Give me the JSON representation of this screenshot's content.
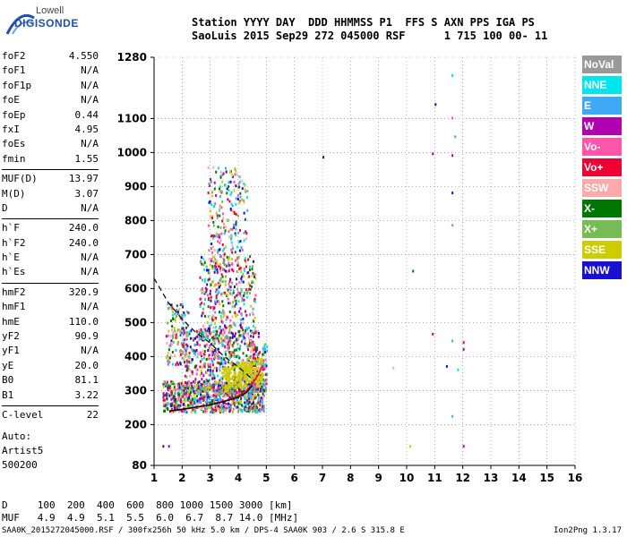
{
  "logo": {
    "line1": "Lowell",
    "line2": "DIGISONDE"
  },
  "header": {
    "line1": "Station YYYY DAY  DDD HHMMSS P1  FFS S AXN PPS IGA PS",
    "line2": "SaoLuis 2015 Sep29 272 045000 RSF      1 715 100 00- 11"
  },
  "params": {
    "group1": [
      {
        "k": "foF2",
        "v": "4.550"
      },
      {
        "k": "foF1",
        "v": "N/A"
      },
      {
        "k": "foF1p",
        "v": "N/A"
      },
      {
        "k": "foE",
        "v": "N/A"
      },
      {
        "k": "foEp",
        "v": "0.44"
      },
      {
        "k": "fxI",
        "v": "4.95"
      },
      {
        "k": "foEs",
        "v": "N/A"
      },
      {
        "k": "fmin",
        "v": "1.55"
      }
    ],
    "group2": [
      {
        "k": "MUF(D)",
        "v": "13.97"
      },
      {
        "k": "M(D)",
        "v": "3.07"
      },
      {
        "k": "D",
        "v": "N/A"
      }
    ],
    "group3": [
      {
        "k": "h`F",
        "v": "240.0"
      },
      {
        "k": "h`F2",
        "v": "240.0"
      },
      {
        "k": "h`E",
        "v": "N/A"
      },
      {
        "k": "h`Es",
        "v": "N/A"
      }
    ],
    "group4": [
      {
        "k": "hmF2",
        "v": "320.9"
      },
      {
        "k": "hmF1",
        "v": "N/A"
      },
      {
        "k": "hmE",
        "v": "110.0"
      },
      {
        "k": "yF2",
        "v": "90.9"
      },
      {
        "k": "yF1",
        "v": "N/A"
      },
      {
        "k": "yE",
        "v": "20.0"
      },
      {
        "k": "B0",
        "v": "81.1"
      },
      {
        "k": "B1",
        "v": "3.22"
      }
    ],
    "group5": [
      {
        "k": "C-level",
        "v": "22"
      }
    ]
  },
  "auto": {
    "l1": "Auto:",
    "l2": "Artist5",
    "l3": "500200"
  },
  "bottom": {
    "dline": "D     100  200  400  600  800 1000 1500 3000 [km]",
    "mufline": "MUF   4.9  4.9  5.1  5.5  6.0  6.7  8.7 14.0 [MHz]"
  },
  "footer": {
    "left": "SAA0K_2015272045000.RSF / 300fx256h 50 kHz 5.0 km / DPS-4 SAA0K 903 / 2.6 S 315.8 E",
    "right": "Ion2Png 1.3.17"
  },
  "legend": [
    {
      "label": "NoVal",
      "color": "#999999"
    },
    {
      "label": "NNE",
      "color": "#00e5ee"
    },
    {
      "label": "E",
      "color": "#3fa9f5"
    },
    {
      "label": "W",
      "color": "#b000b0"
    },
    {
      "label": "Vo-",
      "color": "#ff55aa"
    },
    {
      "label": "Vo+",
      "color": "#ee0033"
    },
    {
      "label": "SSW",
      "color": "#ffaaaa"
    },
    {
      "label": "X-",
      "color": "#007700"
    },
    {
      "label": "X+",
      "color": "#77bb55"
    },
    {
      "label": "SSE",
      "color": "#cccc00"
    },
    {
      "label": "NNW",
      "color": "#1a10d0"
    }
  ],
  "chart_data": {
    "type": "scatter",
    "xlim": [
      1,
      16
    ],
    "ylim": [
      80,
      1280
    ],
    "xticks": [
      "1",
      "2",
      "3",
      "4",
      "5",
      "6",
      "7",
      "8",
      "9",
      "10",
      "11",
      "12",
      "13",
      "14",
      "15",
      "16"
    ],
    "yticks": [
      "80",
      "200",
      "300",
      "400",
      "500",
      "600",
      "700",
      "800",
      "900",
      "1000",
      "1100",
      "1280"
    ],
    "profile": [
      [
        1.55,
        240
      ],
      [
        2.0,
        245
      ],
      [
        2.5,
        252
      ],
      [
        3.0,
        258
      ],
      [
        3.5,
        268
      ],
      [
        4.0,
        280
      ],
      [
        4.3,
        295
      ],
      [
        4.5,
        315
      ]
    ],
    "dashed": [
      [
        1.0,
        630
      ],
      [
        1.5,
        560
      ],
      [
        2.0,
        510
      ],
      [
        2.5,
        470
      ],
      [
        3.0,
        440
      ],
      [
        3.5,
        400
      ],
      [
        4.0,
        370
      ],
      [
        4.55,
        330
      ]
    ],
    "trace": {
      "x": [
        1.55,
        1.8,
        2.0,
        2.3,
        2.6,
        3.0,
        3.3,
        3.6,
        4.0,
        4.3,
        4.5,
        4.7,
        4.85
      ],
      "y": [
        240,
        242,
        244,
        248,
        252,
        258,
        264,
        272,
        285,
        300,
        320,
        345,
        370
      ]
    },
    "isolated": [
      {
        "x": 11.6,
        "y": 1230,
        "c": "#00e5ee"
      },
      {
        "x": 11.0,
        "y": 1145,
        "c": "#1a10d0"
      },
      {
        "x": 11.6,
        "y": 1105,
        "c": "#ff55aa"
      },
      {
        "x": 11.7,
        "y": 1050,
        "c": "#3fa9f5"
      },
      {
        "x": 7.0,
        "y": 990,
        "c": "#1a10d0"
      },
      {
        "x": 10.9,
        "y": 1000,
        "c": "#b000b0"
      },
      {
        "x": 11.6,
        "y": 995,
        "c": "#b000b0"
      },
      {
        "x": 11.6,
        "y": 885,
        "c": "#1a10d0"
      },
      {
        "x": 11.6,
        "y": 790,
        "c": "#77bb55"
      },
      {
        "x": 10.2,
        "y": 655,
        "c": "#007700"
      },
      {
        "x": 10.9,
        "y": 470,
        "c": "#b000b0"
      },
      {
        "x": 11.6,
        "y": 450,
        "c": "#3fa9f5"
      },
      {
        "x": 12.0,
        "y": 445,
        "c": "#ee0033"
      },
      {
        "x": 12.0,
        "y": 425,
        "c": "#b000b0"
      },
      {
        "x": 11.4,
        "y": 375,
        "c": "#1a10d0"
      },
      {
        "x": 11.8,
        "y": 365,
        "c": "#00e5ee"
      },
      {
        "x": 9.5,
        "y": 370,
        "c": "#ffaaaa"
      },
      {
        "x": 11.6,
        "y": 228,
        "c": "#3fa9f5"
      },
      {
        "x": 10.1,
        "y": 140,
        "c": "#cccc00"
      },
      {
        "x": 12.0,
        "y": 140,
        "c": "#b000b0"
      },
      {
        "x": 1.3,
        "y": 140,
        "c": "#1a10d0"
      },
      {
        "x": 1.5,
        "y": 140,
        "c": "#b000b0"
      }
    ]
  }
}
